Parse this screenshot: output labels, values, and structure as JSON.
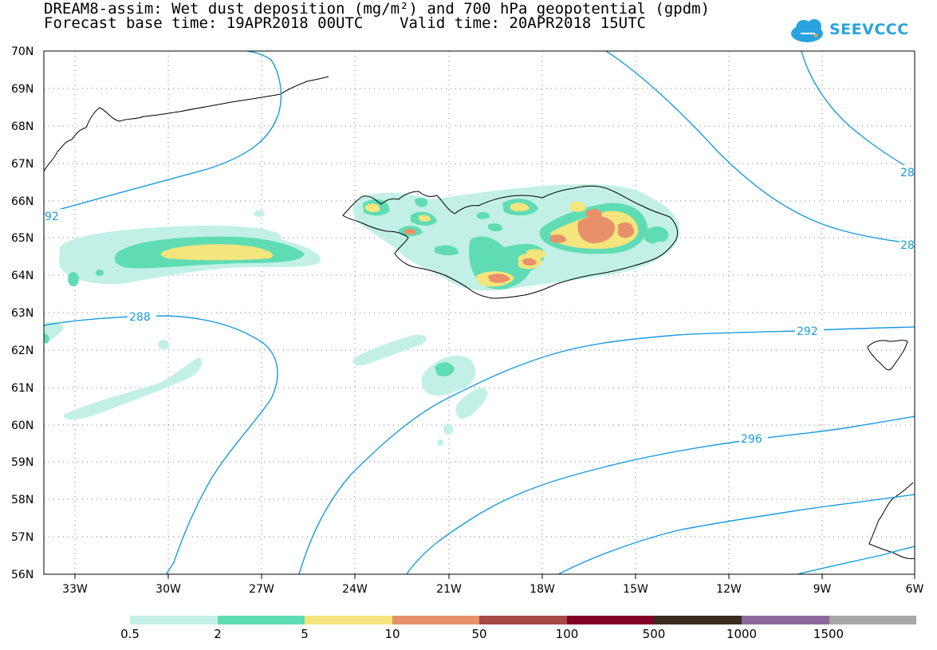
{
  "header": {
    "title_line1": "DREAM8-assim: Wet dust deposition (mg/m²) and 700 hPa geopotential (gpdm)",
    "title_line2": "Forecast base time: 19APR2018 00UTC    Valid time: 20APR2018 15UTC"
  },
  "logo": {
    "text": "SEEVCCC",
    "icon": "cloud-icon",
    "color": "#29a3e0"
  },
  "map": {
    "lon_range": [
      -34.5,
      -6
    ],
    "lat_range": [
      56,
      70
    ],
    "lon_labels": [
      "33W",
      "30W",
      "27W",
      "24W",
      "21W",
      "18W",
      "15W",
      "12W",
      "9W",
      "6W"
    ],
    "lat_labels": [
      "56N",
      "57N",
      "58N",
      "59N",
      "60N",
      "61N",
      "62N",
      "63N",
      "64N",
      "65N",
      "66N",
      "67N",
      "68N",
      "69N",
      "70N"
    ],
    "contour_color": "#1a9be0",
    "contour_labels": [
      "288",
      "292",
      "296",
      "92",
      "28",
      "28"
    ],
    "grid": "dotted"
  },
  "legend": {
    "colors": [
      "#c2f0e6",
      "#5fdcb4",
      "#f4e57c",
      "#e8906a",
      "#a84a45",
      "#800026",
      "#3a2b1f",
      "#8c6a9e",
      "#a6a6a6"
    ],
    "labels": [
      "0.5",
      "2",
      "5",
      "10",
      "50",
      "100",
      "500",
      "1000",
      "1500"
    ]
  }
}
